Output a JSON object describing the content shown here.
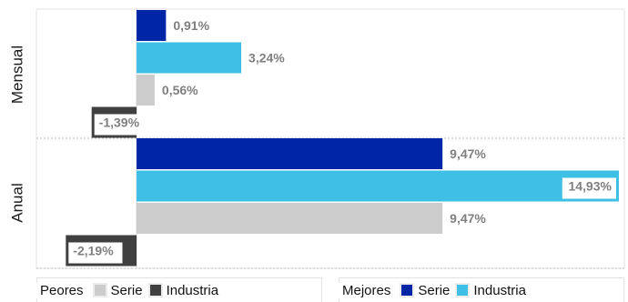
{
  "chart_data": {
    "type": "bar",
    "orientation": "horizontal",
    "groups": [
      {
        "name": "Mensual",
        "bars": [
          {
            "series": "Mejores Serie",
            "value": 0.91,
            "label": "0,91%"
          },
          {
            "series": "Mejores Industria",
            "value": 3.24,
            "label": "3,24%"
          },
          {
            "series": "Peores Serie",
            "value": 0.56,
            "label": "0,56%"
          },
          {
            "series": "Peores Industria",
            "value": -1.39,
            "label": "-1,39%"
          }
        ]
      },
      {
        "name": "Anual",
        "bars": [
          {
            "series": "Mejores Serie",
            "value": 9.47,
            "label": "9,47%"
          },
          {
            "series": "Mejores Industria",
            "value": 14.93,
            "label": "14,93%"
          },
          {
            "series": "Peores Serie",
            "value": 9.47,
            "label": "9,47%"
          },
          {
            "series": "Peores Industria",
            "value": -2.19,
            "label": "-2,19%"
          }
        ]
      }
    ],
    "xlim": [
      -3.1,
      15.1
    ],
    "grid": true,
    "legend_position": "bottom",
    "colors": {
      "Mejores Serie": "#0026a8",
      "Mejores Industria": "#3ec0e6",
      "Peores Serie": "#cccccc",
      "Peores Industria": "#404040"
    }
  },
  "legend": {
    "peores": {
      "title": "Peores",
      "items": [
        {
          "label": "Serie",
          "color": "#cccccc"
        },
        {
          "label": "Industria",
          "color": "#404040"
        }
      ]
    },
    "mejores": {
      "title": "Mejores",
      "items": [
        {
          "label": "Serie",
          "color": "#0026a8"
        },
        {
          "label": "Industria",
          "color": "#3ec0e6"
        }
      ]
    }
  }
}
